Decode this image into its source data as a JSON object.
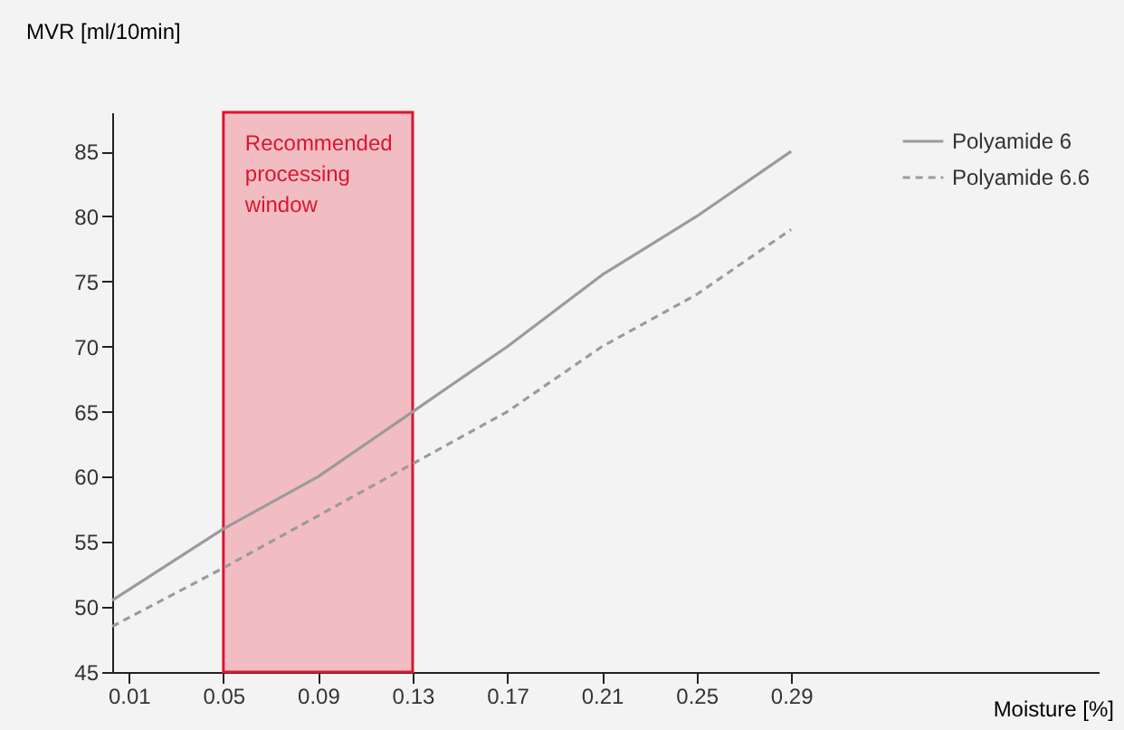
{
  "chart_data": {
    "type": "line",
    "xlabel": "Moisture [%]",
    "ylabel": "MVR [ml/10min]",
    "xlim": [
      0.003,
      0.42
    ],
    "ylim": [
      45,
      88
    ],
    "xticks": [
      0.01,
      0.05,
      0.09,
      0.13,
      0.17,
      0.21,
      0.25,
      0.29
    ],
    "yticks": [
      45,
      50,
      55,
      60,
      65,
      70,
      75,
      80,
      85
    ],
    "x": [
      0.003,
      0.05,
      0.09,
      0.13,
      0.17,
      0.21,
      0.25,
      0.29
    ],
    "series": [
      {
        "name": "Polyamide 6",
        "color": "#9b9b9b",
        "line_style": "solid",
        "values": [
          50.5,
          56,
          60,
          65,
          70,
          75.5,
          80,
          85
        ]
      },
      {
        "name": "Polyamide 6.6",
        "color": "#9b9b9b",
        "line_style": "dashed",
        "values": [
          48.5,
          53,
          57,
          61,
          65,
          70,
          74,
          79
        ]
      }
    ],
    "bands": [
      {
        "axis": "x",
        "from": 0.05,
        "to": 0.13,
        "label": "Recommended processing window",
        "color": "#f2bcc3"
      }
    ],
    "grid": false,
    "legend": "top right",
    "marker": "none"
  }
}
